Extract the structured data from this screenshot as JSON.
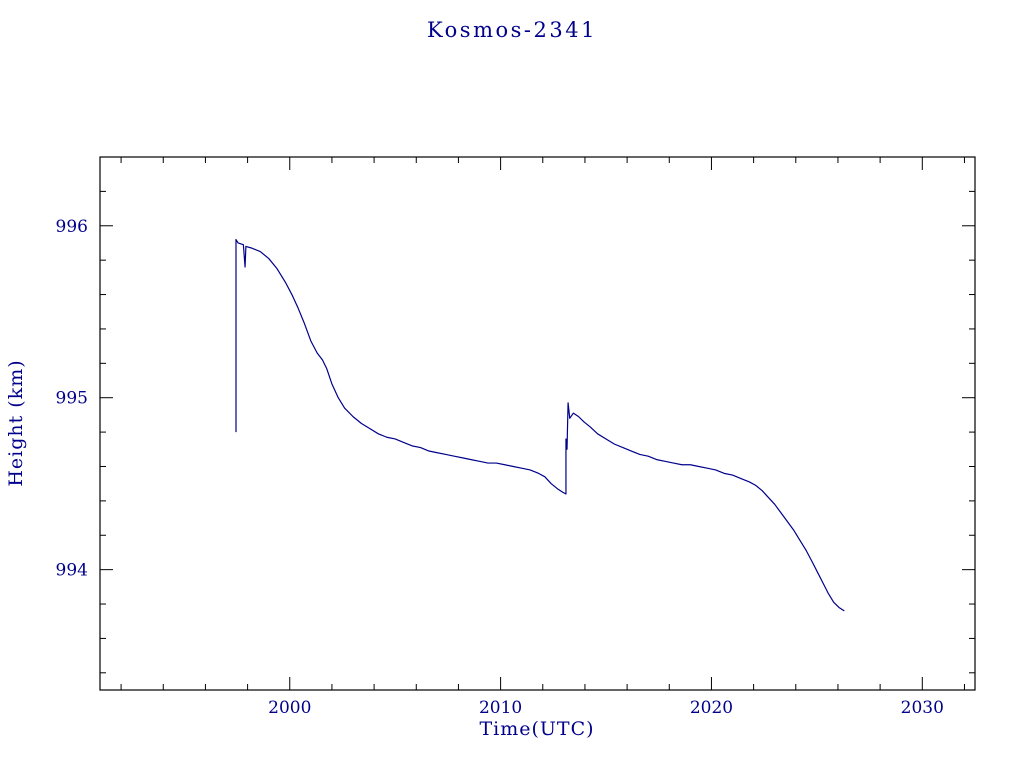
{
  "chart_data": {
    "type": "line",
    "title": "Kosmos-2341",
    "xlabel": "Time(UTC)",
    "ylabel": "Height (km)",
    "xlim": [
      1991,
      2032.5
    ],
    "ylim": [
      993.3,
      996.4
    ],
    "xticks": [
      2000,
      2010,
      2020,
      2030
    ],
    "yticks": [
      994,
      995,
      996
    ],
    "x_minor_step": 2,
    "y_minor_step": 0.2,
    "grid": false,
    "legend": "none",
    "colors": {
      "line": "#00008b",
      "axis": "#000000",
      "text": "#00008b",
      "background": "#ffffff"
    },
    "series": [
      {
        "name": "height",
        "points": [
          [
            1997.45,
            994.8
          ],
          [
            1997.45,
            995.92
          ],
          [
            1997.55,
            995.9
          ],
          [
            1997.8,
            995.89
          ],
          [
            1997.88,
            995.76
          ],
          [
            1997.92,
            995.88
          ],
          [
            1998.2,
            995.87
          ],
          [
            1998.6,
            995.85
          ],
          [
            1999.0,
            995.81
          ],
          [
            1999.4,
            995.75
          ],
          [
            1999.8,
            995.67
          ],
          [
            2000.1,
            995.6
          ],
          [
            2000.4,
            995.52
          ],
          [
            2000.7,
            995.43
          ],
          [
            2001.0,
            995.33
          ],
          [
            2001.3,
            995.26
          ],
          [
            2001.55,
            995.22
          ],
          [
            2001.75,
            995.17
          ],
          [
            2002.0,
            995.08
          ],
          [
            2002.3,
            995.0
          ],
          [
            2002.6,
            994.94
          ],
          [
            2003.0,
            994.89
          ],
          [
            2003.4,
            994.85
          ],
          [
            2003.8,
            994.82
          ],
          [
            2004.2,
            994.79
          ],
          [
            2004.6,
            994.77
          ],
          [
            2005.0,
            994.76
          ],
          [
            2005.4,
            994.74
          ],
          [
            2005.8,
            994.72
          ],
          [
            2006.2,
            994.71
          ],
          [
            2006.6,
            994.69
          ],
          [
            2007.0,
            994.68
          ],
          [
            2007.4,
            994.67
          ],
          [
            2007.8,
            994.66
          ],
          [
            2008.2,
            994.65
          ],
          [
            2008.6,
            994.64
          ],
          [
            2009.0,
            994.63
          ],
          [
            2009.4,
            994.62
          ],
          [
            2009.8,
            994.62
          ],
          [
            2010.2,
            994.61
          ],
          [
            2010.6,
            994.6
          ],
          [
            2011.0,
            994.59
          ],
          [
            2011.4,
            994.58
          ],
          [
            2011.8,
            994.56
          ],
          [
            2012.1,
            994.54
          ],
          [
            2012.4,
            994.5
          ],
          [
            2012.7,
            994.47
          ],
          [
            2012.95,
            994.45
          ],
          [
            2013.1,
            994.44
          ],
          [
            2013.1,
            994.76
          ],
          [
            2013.15,
            994.7
          ],
          [
            2013.2,
            994.97
          ],
          [
            2013.28,
            994.88
          ],
          [
            2013.45,
            994.91
          ],
          [
            2013.7,
            994.89
          ],
          [
            2013.95,
            994.86
          ],
          [
            2014.25,
            994.83
          ],
          [
            2014.6,
            994.79
          ],
          [
            2015.0,
            994.76
          ],
          [
            2015.4,
            994.73
          ],
          [
            2015.8,
            994.71
          ],
          [
            2016.2,
            994.69
          ],
          [
            2016.6,
            994.67
          ],
          [
            2017.0,
            994.66
          ],
          [
            2017.4,
            994.64
          ],
          [
            2017.8,
            994.63
          ],
          [
            2018.2,
            994.62
          ],
          [
            2018.6,
            994.61
          ],
          [
            2019.0,
            994.61
          ],
          [
            2019.4,
            994.6
          ],
          [
            2019.8,
            994.59
          ],
          [
            2020.2,
            994.58
          ],
          [
            2020.6,
            994.56
          ],
          [
            2021.0,
            994.55
          ],
          [
            2021.4,
            994.53
          ],
          [
            2021.8,
            994.51
          ],
          [
            2022.1,
            994.49
          ],
          [
            2022.4,
            994.46
          ],
          [
            2022.7,
            994.42
          ],
          [
            2023.0,
            994.38
          ],
          [
            2023.3,
            994.33
          ],
          [
            2023.6,
            994.28
          ],
          [
            2023.9,
            994.23
          ],
          [
            2024.2,
            994.17
          ],
          [
            2024.5,
            994.11
          ],
          [
            2024.8,
            994.04
          ],
          [
            2025.05,
            993.98
          ],
          [
            2025.3,
            993.92
          ],
          [
            2025.55,
            993.86
          ],
          [
            2025.8,
            993.81
          ],
          [
            2026.05,
            993.78
          ],
          [
            2026.3,
            993.76
          ]
        ]
      }
    ]
  }
}
